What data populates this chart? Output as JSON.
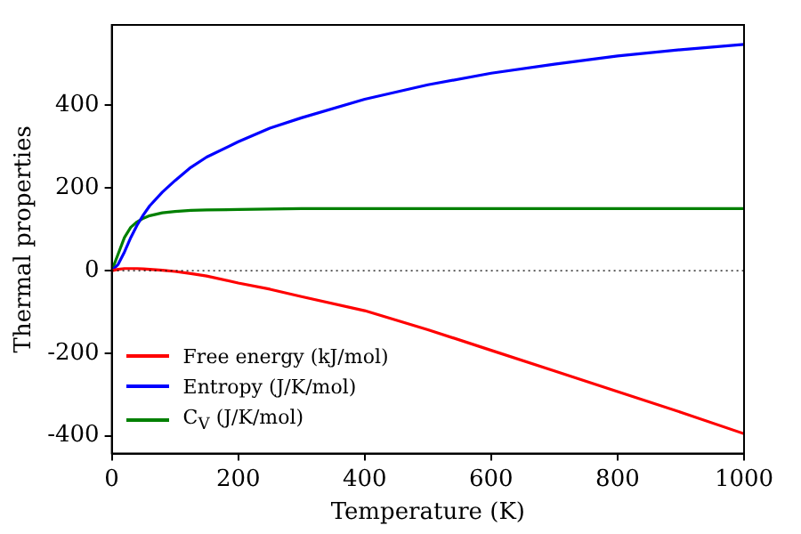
{
  "chart_data": {
    "type": "line",
    "xlabel": "Temperature (K)",
    "ylabel": "Thermal properties",
    "xlim": [
      0,
      1000
    ],
    "xticks": [
      0,
      200,
      400,
      600,
      800,
      1000
    ],
    "ylim": [
      -443,
      595
    ],
    "yticks": [
      -400,
      -200,
      0,
      200,
      400
    ],
    "x": [
      0,
      10,
      20,
      30,
      40,
      50,
      60,
      80,
      100,
      125,
      150,
      200,
      250,
      300,
      400,
      500,
      600,
      700,
      800,
      900,
      1000
    ],
    "series": [
      {
        "name": "Free energy (kJ/mol)",
        "color": "#ff0000",
        "values": [
          0,
          3,
          5,
          5,
          5,
          4,
          3,
          1,
          -2,
          -7,
          -13,
          -30,
          -45,
          -63,
          -97,
          -143,
          -193,
          -243,
          -293,
          -343,
          -395
        ]
      },
      {
        "name": "Entropy (J/K/mol)",
        "color": "#0000ff",
        "values": [
          0,
          15,
          45,
          80,
          110,
          135,
          157,
          190,
          218,
          250,
          275,
          312,
          345,
          370,
          415,
          450,
          478,
          500,
          520,
          535,
          548
        ]
      },
      {
        "name": "C$_{V}$ (J/K/mol)",
        "color": "#008000",
        "values": [
          0,
          40,
          80,
          105,
          118,
          127,
          133,
          140,
          143,
          146,
          147,
          148,
          149,
          150,
          150,
          150,
          150,
          150,
          150,
          150,
          150
        ]
      }
    ],
    "ref_lines": [
      {
        "axis": "y",
        "value": 0,
        "color": "#000000",
        "line_style": "dotted"
      }
    ],
    "legend": "bottom left",
    "grid": false,
    "marker": "none",
    "line_style": "solid"
  }
}
